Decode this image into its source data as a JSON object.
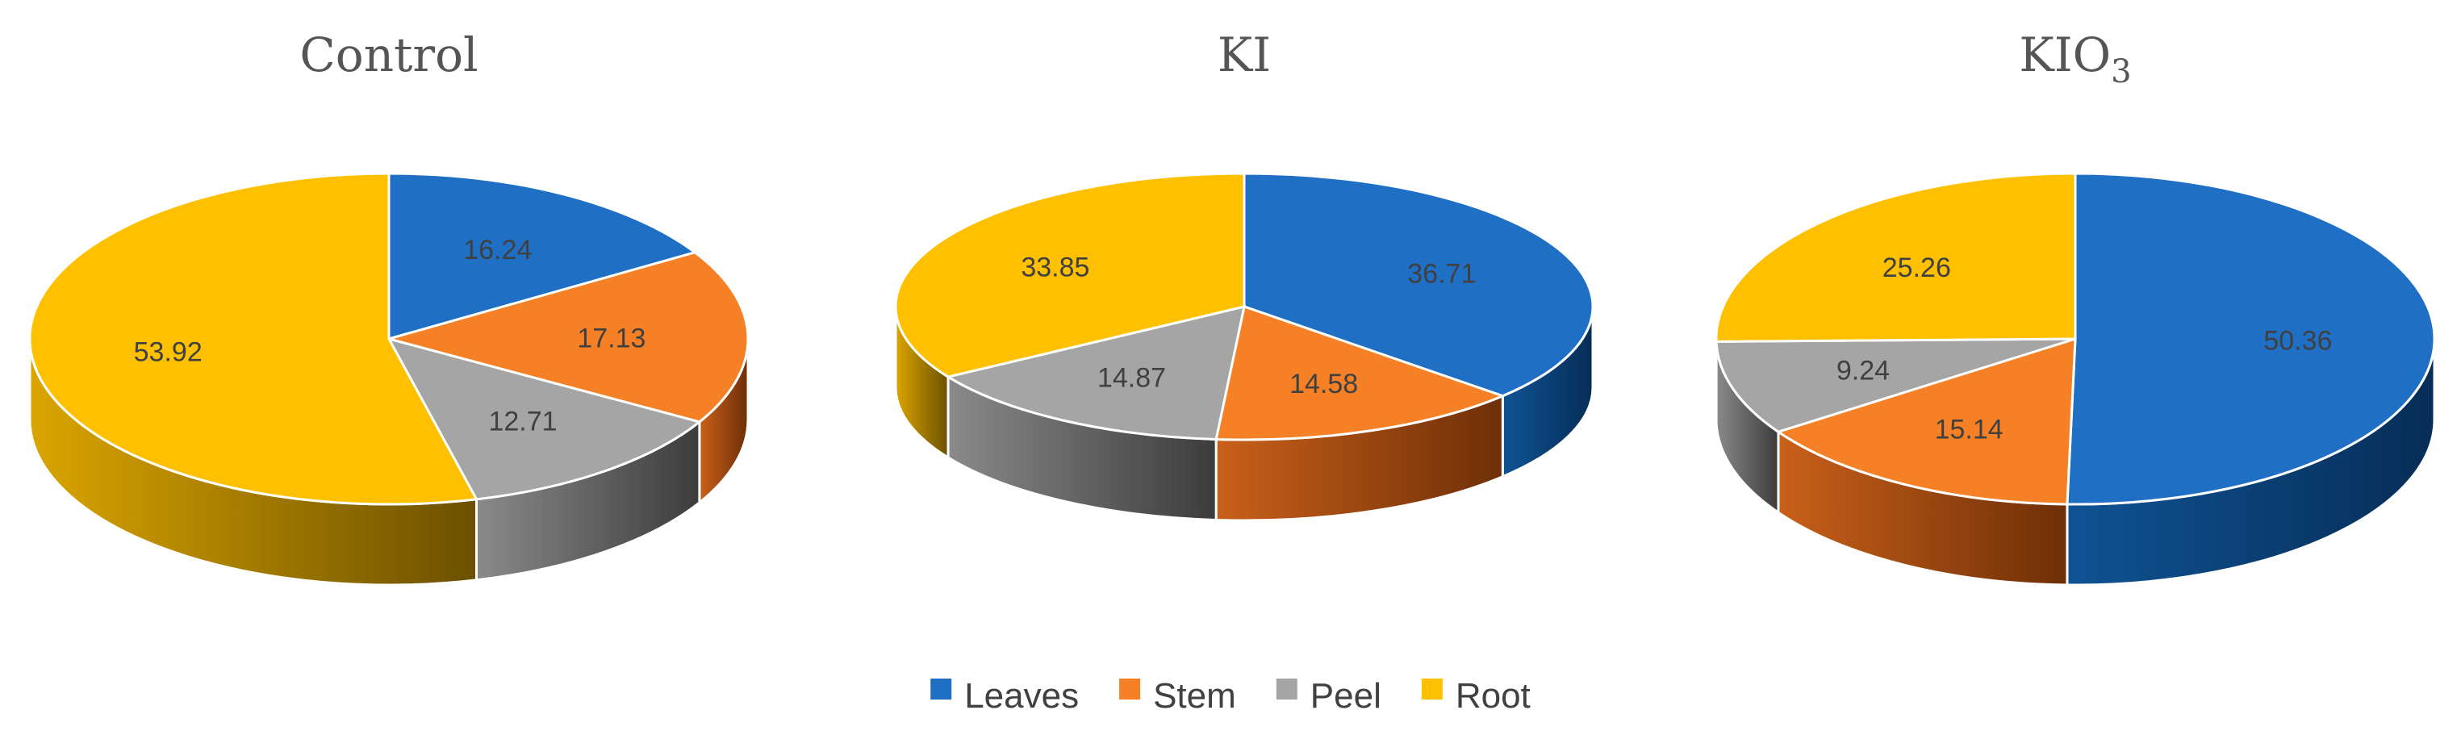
{
  "chart_data": [
    {
      "type": "pie",
      "title": "Control",
      "title_sub": "",
      "categories": [
        "Leaves",
        "Stem",
        "Peel",
        "Root"
      ],
      "values": [
        16.24,
        17.13,
        12.71,
        53.92
      ],
      "start_angle_deg": 0,
      "direction": "clockwise",
      "style": "3d"
    },
    {
      "type": "pie",
      "title": "KI",
      "title_sub": "",
      "categories": [
        "Leaves",
        "Stem",
        "Peel",
        "Root"
      ],
      "values": [
        36.71,
        14.58,
        14.87,
        33.85
      ],
      "start_angle_deg": 0,
      "direction": "clockwise",
      "style": "3d"
    },
    {
      "type": "pie",
      "title": "KIO",
      "title_sub": "3",
      "categories": [
        "Leaves",
        "Stem",
        "Peel",
        "Root"
      ],
      "values": [
        50.36,
        15.14,
        9.24,
        25.26
      ],
      "start_angle_deg": 0,
      "direction": "clockwise",
      "style": "3d"
    }
  ],
  "legend": {
    "position": "bottom",
    "items": [
      {
        "label": "Leaves",
        "color": "#1f6fc5"
      },
      {
        "label": "Stem",
        "color": "#f58025"
      },
      {
        "label": "Peel",
        "color": "#a5a5a5"
      },
      {
        "label": "Root",
        "color": "#ffc000"
      }
    ]
  },
  "colors": {
    "Leaves": {
      "top": "#1f6fc5",
      "side_light": "#0f5394",
      "side_dark": "#062d57"
    },
    "Stem": {
      "top": "#f58025",
      "side_light": "#c9601a",
      "side_dark": "#6e2f07"
    },
    "Peel": {
      "top": "#a5a5a5",
      "side_light": "#8a8a8a",
      "side_dark": "#3c3c3c"
    },
    "Root": {
      "top": "#ffc000",
      "side_light": "#dba500",
      "side_dark": "#6b5000"
    }
  }
}
